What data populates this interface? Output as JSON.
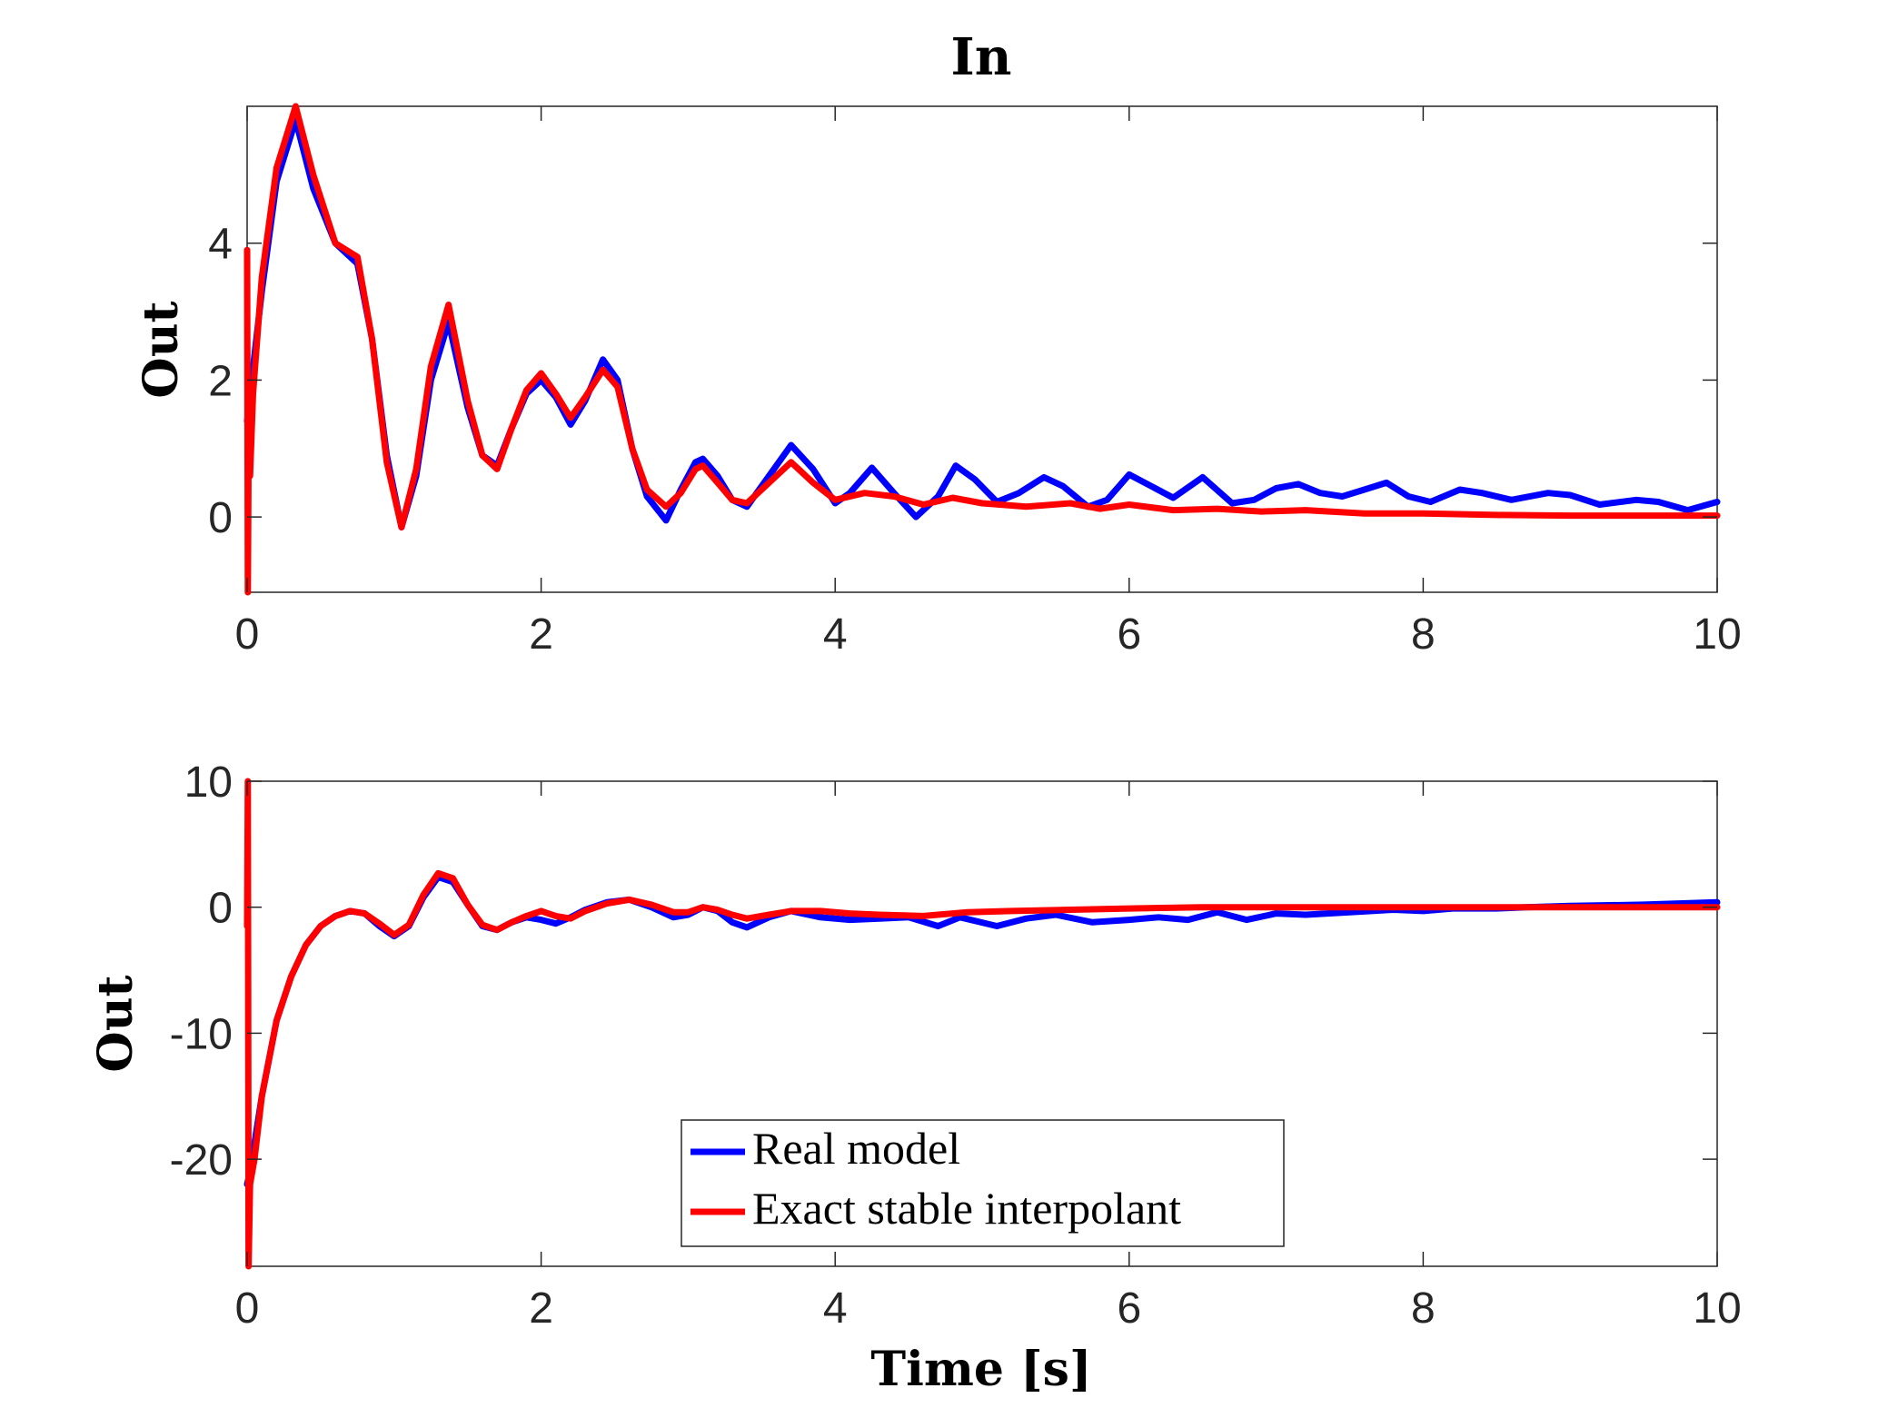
{
  "chart_data": [
    {
      "type": "line",
      "title": "In",
      "xlabel": "",
      "ylabel": "Out",
      "xlim": [
        0,
        10
      ],
      "ylim": [
        -1.1,
        6
      ],
      "xticks": [
        "0",
        "2",
        "4",
        "6",
        "8",
        "10"
      ],
      "yticks": [
        "0",
        "2",
        "4"
      ],
      "grid": false,
      "series": [
        {
          "name": "Real model",
          "color": "#0000ff",
          "x": [
            0,
            0.02,
            0.1,
            0.2,
            0.33,
            0.45,
            0.6,
            0.75,
            0.85,
            0.95,
            1.05,
            1.15,
            1.25,
            1.37,
            1.5,
            1.6,
            1.7,
            1.8,
            1.9,
            2.0,
            2.1,
            2.2,
            2.3,
            2.42,
            2.52,
            2.62,
            2.72,
            2.85,
            2.95,
            3.05,
            3.1,
            3.2,
            3.3,
            3.4,
            3.55,
            3.7,
            3.85,
            4.0,
            4.1,
            4.25,
            4.4,
            4.55,
            4.7,
            4.82,
            4.95,
            5.1,
            5.25,
            5.42,
            5.55,
            5.72,
            5.85,
            6.0,
            6.15,
            6.3,
            6.5,
            6.7,
            6.85,
            7.0,
            7.15,
            7.3,
            7.45,
            7.6,
            7.75,
            7.9,
            8.05,
            8.25,
            8.4,
            8.6,
            8.85,
            9.0,
            9.2,
            9.45,
            9.6,
            9.8,
            10.0
          ],
          "y": [
            1.4,
            1.8,
            3.3,
            4.9,
            5.8,
            4.8,
            4.0,
            3.7,
            2.6,
            0.9,
            -0.15,
            0.6,
            2.0,
            2.85,
            1.6,
            0.9,
            0.75,
            1.3,
            1.8,
            2.0,
            1.75,
            1.35,
            1.7,
            2.3,
            2.0,
            1.0,
            0.3,
            -0.05,
            0.4,
            0.8,
            0.85,
            0.6,
            0.25,
            0.15,
            0.6,
            1.05,
            0.7,
            0.2,
            0.35,
            0.72,
            0.35,
            0.0,
            0.3,
            0.75,
            0.55,
            0.22,
            0.35,
            0.58,
            0.45,
            0.15,
            0.25,
            0.62,
            0.45,
            0.28,
            0.58,
            0.2,
            0.25,
            0.42,
            0.48,
            0.35,
            0.3,
            0.4,
            0.5,
            0.3,
            0.22,
            0.4,
            0.35,
            0.25,
            0.35,
            0.32,
            0.18,
            0.25,
            0.22,
            0.1,
            0.22
          ]
        },
        {
          "name": "Exact stable interpolant",
          "color": "#ff0000",
          "x": [
            0,
            0.005,
            0.01,
            0.02,
            0.04,
            0.1,
            0.2,
            0.33,
            0.45,
            0.6,
            0.75,
            0.85,
            0.95,
            1.05,
            1.15,
            1.25,
            1.37,
            1.5,
            1.6,
            1.7,
            1.8,
            1.9,
            2.0,
            2.1,
            2.2,
            2.3,
            2.42,
            2.52,
            2.62,
            2.72,
            2.85,
            2.95,
            3.05,
            3.1,
            3.2,
            3.3,
            3.4,
            3.55,
            3.7,
            3.85,
            4.0,
            4.2,
            4.4,
            4.6,
            4.8,
            5.0,
            5.3,
            5.6,
            5.8,
            6.0,
            6.3,
            6.6,
            6.9,
            7.2,
            7.6,
            8.0,
            8.5,
            9.0,
            9.5,
            10.0
          ],
          "y": [
            3.9,
            -1.1,
            1.0,
            0.6,
            1.8,
            3.5,
            5.1,
            6.0,
            5.0,
            4.0,
            3.8,
            2.6,
            0.8,
            -0.15,
            0.7,
            2.2,
            3.1,
            1.7,
            0.9,
            0.7,
            1.3,
            1.85,
            2.1,
            1.8,
            1.45,
            1.75,
            2.15,
            1.9,
            1.0,
            0.4,
            0.15,
            0.35,
            0.7,
            0.75,
            0.5,
            0.25,
            0.2,
            0.5,
            0.8,
            0.5,
            0.25,
            0.35,
            0.3,
            0.18,
            0.28,
            0.2,
            0.15,
            0.2,
            0.12,
            0.18,
            0.1,
            0.12,
            0.08,
            0.1,
            0.05,
            0.05,
            0.03,
            0.02,
            0.02,
            0.02
          ]
        }
      ]
    },
    {
      "type": "line",
      "title": "",
      "xlabel": "Time [s]",
      "ylabel": "Out",
      "xlim": [
        0,
        10
      ],
      "ylim": [
        -28.5,
        10
      ],
      "xticks": [
        "0",
        "2",
        "4",
        "6",
        "8",
        "10"
      ],
      "yticks": [
        "10",
        "0",
        "-10",
        "-20"
      ],
      "grid": false,
      "legend": {
        "location": "bottom-center",
        "entries": [
          "Real model",
          "Exact stable interpolant"
        ]
      },
      "series": [
        {
          "name": "Real model",
          "color": "#0000ff",
          "x": [
            0,
            0.02,
            0.1,
            0.2,
            0.3,
            0.4,
            0.5,
            0.6,
            0.7,
            0.8,
            0.9,
            1.0,
            1.1,
            1.2,
            1.3,
            1.4,
            1.5,
            1.6,
            1.7,
            1.8,
            1.9,
            2.0,
            2.1,
            2.2,
            2.3,
            2.45,
            2.6,
            2.75,
            2.9,
            3.0,
            3.1,
            3.2,
            3.3,
            3.4,
            3.55,
            3.7,
            3.9,
            4.1,
            4.3,
            4.5,
            4.7,
            4.85,
            5.1,
            5.3,
            5.5,
            5.75,
            6.0,
            6.2,
            6.4,
            6.6,
            6.8,
            7.0,
            7.2,
            7.5,
            7.8,
            8.0,
            8.2,
            8.5,
            8.7,
            9.0,
            9.5,
            10.0
          ],
          "y": [
            -22,
            -21,
            -15,
            -9,
            -5.5,
            -3,
            -1.5,
            -0.7,
            -0.3,
            -0.5,
            -1.5,
            -2.3,
            -1.5,
            0.8,
            2.4,
            2.0,
            0.2,
            -1.5,
            -1.8,
            -1.2,
            -0.8,
            -1.0,
            -1.3,
            -0.8,
            -0.2,
            0.4,
            0.6,
            0.0,
            -0.8,
            -0.6,
            0.0,
            -0.3,
            -1.2,
            -1.6,
            -0.8,
            -0.3,
            -0.8,
            -1.0,
            -0.9,
            -0.8,
            -1.5,
            -0.8,
            -1.5,
            -0.9,
            -0.6,
            -1.2,
            -1.0,
            -0.8,
            -1.0,
            -0.4,
            -1.0,
            -0.5,
            -0.6,
            -0.4,
            -0.2,
            -0.3,
            -0.1,
            -0.1,
            0.0,
            0.1,
            0.2,
            0.4
          ]
        },
        {
          "name": "Exact stable interpolant",
          "color": "#ff0000",
          "x": [
            0,
            0.005,
            0.01,
            0.02,
            0.05,
            0.1,
            0.2,
            0.3,
            0.4,
            0.5,
            0.6,
            0.7,
            0.8,
            0.9,
            1.0,
            1.1,
            1.2,
            1.3,
            1.4,
            1.5,
            1.6,
            1.7,
            1.8,
            1.9,
            2.0,
            2.1,
            2.2,
            2.3,
            2.45,
            2.6,
            2.75,
            2.9,
            3.0,
            3.1,
            3.2,
            3.3,
            3.4,
            3.55,
            3.7,
            3.9,
            4.1,
            4.3,
            4.6,
            4.9,
            5.2,
            5.6,
            6.0,
            6.5,
            7.0,
            7.5,
            8.0,
            8.5,
            9.0,
            9.5,
            10.0
          ],
          "y": [
            -1.5,
            10,
            -28.5,
            -22,
            -20,
            -15,
            -9,
            -5.5,
            -3,
            -1.5,
            -0.7,
            -0.3,
            -0.5,
            -1.3,
            -2.2,
            -1.4,
            1.0,
            2.7,
            2.3,
            0.2,
            -1.4,
            -1.8,
            -1.2,
            -0.7,
            -0.3,
            -0.7,
            -0.9,
            -0.3,
            0.3,
            0.6,
            0.2,
            -0.4,
            -0.4,
            0.0,
            -0.2,
            -0.6,
            -0.9,
            -0.6,
            -0.3,
            -0.3,
            -0.5,
            -0.6,
            -0.7,
            -0.4,
            -0.3,
            -0.2,
            -0.1,
            0.0,
            0.0,
            0.0,
            0.0,
            0.0,
            0.0,
            0.0,
            0.0
          ]
        }
      ]
    }
  ]
}
